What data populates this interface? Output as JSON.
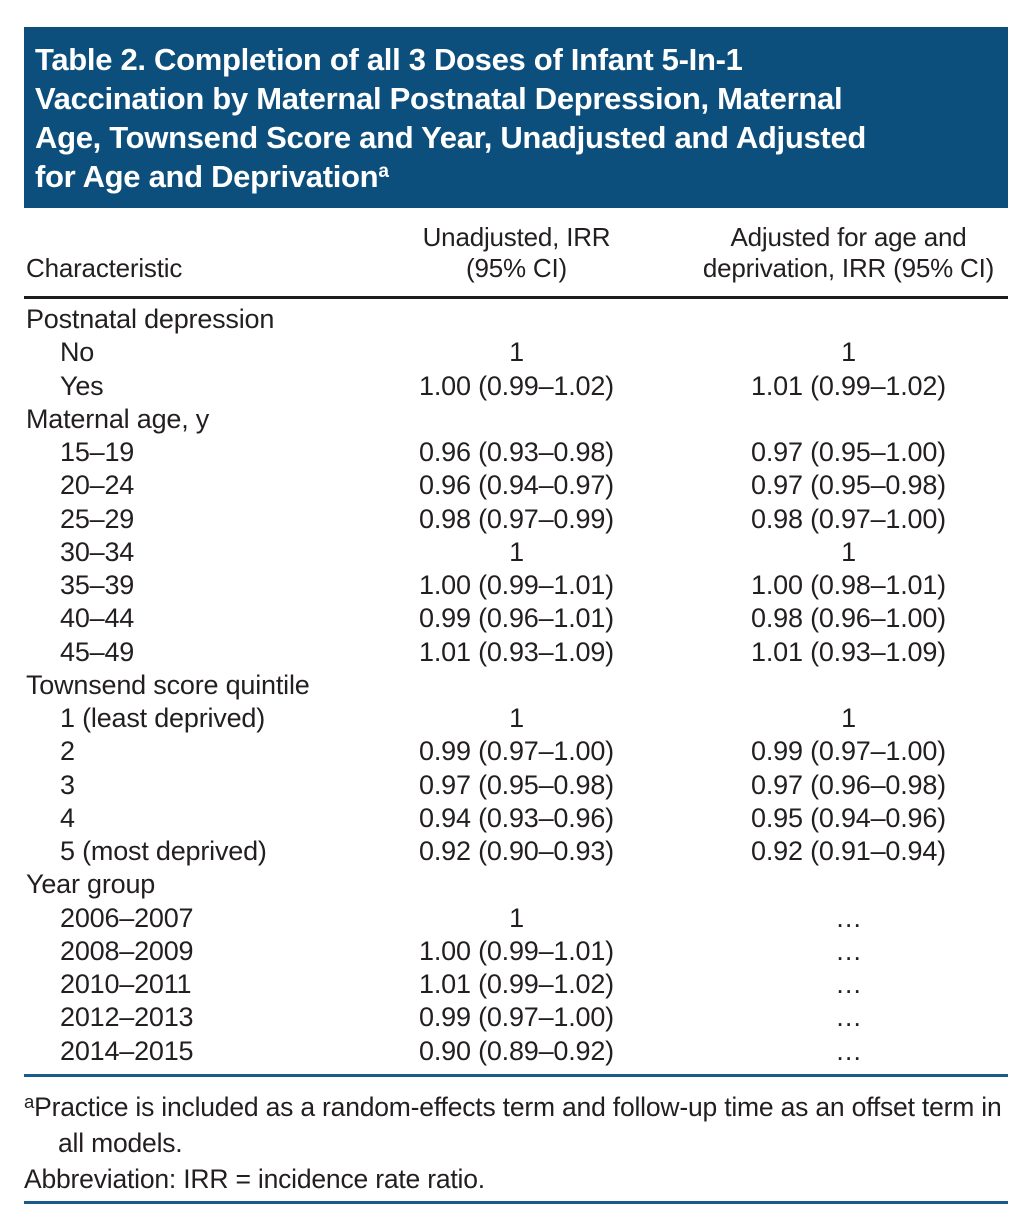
{
  "title": {
    "lines": [
      "Table 2. Completion of all 3 Doses of Infant 5-In-1",
      "Vaccination by Maternal Postnatal Depression, Maternal",
      "Age, Townsend Score and Year, Unadjusted and Adjusted",
      "for Age and Deprivation"
    ],
    "superscript": "a"
  },
  "columns": [
    {
      "label": "Characteristic"
    },
    {
      "label": "Unadjusted, IRR\n(95% CI)"
    },
    {
      "label": "Adjusted for age and\ndeprivation, IRR (95% CI)"
    }
  ],
  "rows": [
    {
      "type": "group",
      "label": "Postnatal depression",
      "unadjusted": "",
      "adjusted": ""
    },
    {
      "type": "item",
      "label": "No",
      "unadjusted": "1",
      "adjusted": "1"
    },
    {
      "type": "item",
      "label": "Yes",
      "unadjusted": "1.00 (0.99–1.02)",
      "adjusted": "1.01 (0.99–1.02)"
    },
    {
      "type": "group",
      "label": "Maternal age, y",
      "unadjusted": "",
      "adjusted": ""
    },
    {
      "type": "item",
      "label": "15–19",
      "unadjusted": "0.96 (0.93–0.98)",
      "adjusted": "0.97 (0.95–1.00)"
    },
    {
      "type": "item",
      "label": "20–24",
      "unadjusted": "0.96 (0.94–0.97)",
      "adjusted": "0.97 (0.95–0.98)"
    },
    {
      "type": "item",
      "label": "25–29",
      "unadjusted": "0.98 (0.97–0.99)",
      "adjusted": "0.98 (0.97–1.00)"
    },
    {
      "type": "item",
      "label": "30–34",
      "unadjusted": "1",
      "adjusted": "1"
    },
    {
      "type": "item",
      "label": "35–39",
      "unadjusted": "1.00 (0.99–1.01)",
      "adjusted": "1.00 (0.98–1.01)"
    },
    {
      "type": "item",
      "label": "40–44",
      "unadjusted": "0.99 (0.96–1.01)",
      "adjusted": "0.98 (0.96–1.00)"
    },
    {
      "type": "item",
      "label": "45–49",
      "unadjusted": "1.01 (0.93–1.09)",
      "adjusted": "1.01 (0.93–1.09)"
    },
    {
      "type": "group",
      "label": "Townsend score quintile",
      "unadjusted": "",
      "adjusted": ""
    },
    {
      "type": "item",
      "label": "1 (least deprived)",
      "unadjusted": "1",
      "adjusted": "1"
    },
    {
      "type": "item",
      "label": "2",
      "unadjusted": "0.99 (0.97–1.00)",
      "adjusted": "0.99 (0.97–1.00)"
    },
    {
      "type": "item",
      "label": "3",
      "unadjusted": "0.97 (0.95–0.98)",
      "adjusted": "0.97 (0.96–0.98)"
    },
    {
      "type": "item",
      "label": "4",
      "unadjusted": "0.94 (0.93–0.96)",
      "adjusted": "0.95 (0.94–0.96)"
    },
    {
      "type": "item",
      "label": "5 (most deprived)",
      "unadjusted": "0.92 (0.90–0.93)",
      "adjusted": "0.92 (0.91–0.94)"
    },
    {
      "type": "group",
      "label": "Year group",
      "unadjusted": "",
      "adjusted": ""
    },
    {
      "type": "item",
      "label": "2006–2007",
      "unadjusted": "1",
      "adjusted": "…"
    },
    {
      "type": "item",
      "label": "2008–2009",
      "unadjusted": "1.00 (0.99–1.01)",
      "adjusted": "…"
    },
    {
      "type": "item",
      "label": "2010–2011",
      "unadjusted": "1.01 (0.99–1.02)",
      "adjusted": "…"
    },
    {
      "type": "item",
      "label": "2012–2013",
      "unadjusted": "0.99 (0.97–1.00)",
      "adjusted": "…"
    },
    {
      "type": "item",
      "label": "2014–2015",
      "unadjusted": "0.90 (0.89–0.92)",
      "adjusted": "…"
    }
  ],
  "footnotes": [
    {
      "marker": "a",
      "text": "Practice is included as a random-effects term and follow-up time as an offset term in all models."
    },
    {
      "marker": "",
      "text": "Abbreviation: IRR = incidence rate ratio."
    }
  ],
  "colors": {
    "header_bg": "#0d4f7c",
    "title_text": "#ffffff",
    "body_text": "#231f20",
    "heavy_rule": "#1c1c1c",
    "blue_rule": "#1b5b8b"
  }
}
